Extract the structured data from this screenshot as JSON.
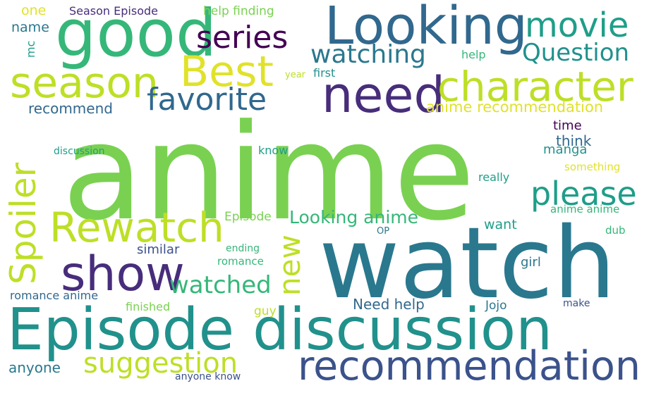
{
  "words": {
    "anime": "anime",
    "watch": "watch",
    "episode_discussion": "Episode discussion",
    "good": "good",
    "looking": "Looking",
    "recommendation": "recommendation",
    "need": "need",
    "best": "Best",
    "season": "season",
    "character": "character",
    "show": "show",
    "rewatch": "Rewatch",
    "spoiler": "Spoiler",
    "series": "series",
    "movie": "movie",
    "favorite": "favorite",
    "please": "please",
    "watching": "watching",
    "question": "Question",
    "suggestion": "suggestion",
    "new": "new",
    "watched": "watched",
    "anime_recommendation": "anime recommendation",
    "looking_anime": "Looking anime",
    "recommend": "recommend",
    "one": "one",
    "season_episode": "Season Episode",
    "help_finding": "help finding",
    "name": "name",
    "mc": "mc",
    "help": "help",
    "year": "year",
    "first": "first",
    "time": "time",
    "think": "think",
    "manga": "manga",
    "know": "know",
    "discussion": "discussion",
    "something": "something",
    "really": "really",
    "anime_anime": "anime anime",
    "episode": "Episode",
    "want": "want",
    "op": "OP",
    "dub": "dub",
    "similar": "similar",
    "ending": "ending",
    "romance": "romance",
    "girl": "girl",
    "romance_anime": "romance anime",
    "finished": "finished",
    "guy": "guy",
    "need_help": "Need help",
    "jojo": "Jojo",
    "make": "make",
    "anyone": "anyone",
    "anyone_know": "anyone know"
  },
  "colors": {
    "light_green": "#7ad151",
    "teal": "#21918c",
    "dark_teal": "#2a788e",
    "slate_blue": "#31688e",
    "navy": "#3b528b",
    "purple": "#440154",
    "indigo": "#472d7b",
    "green": "#35b779",
    "aqua": "#1f9e89",
    "yellow_green": "#bddf26",
    "yellow": "#e0e22a",
    "mid_green": "#5ec962"
  }
}
